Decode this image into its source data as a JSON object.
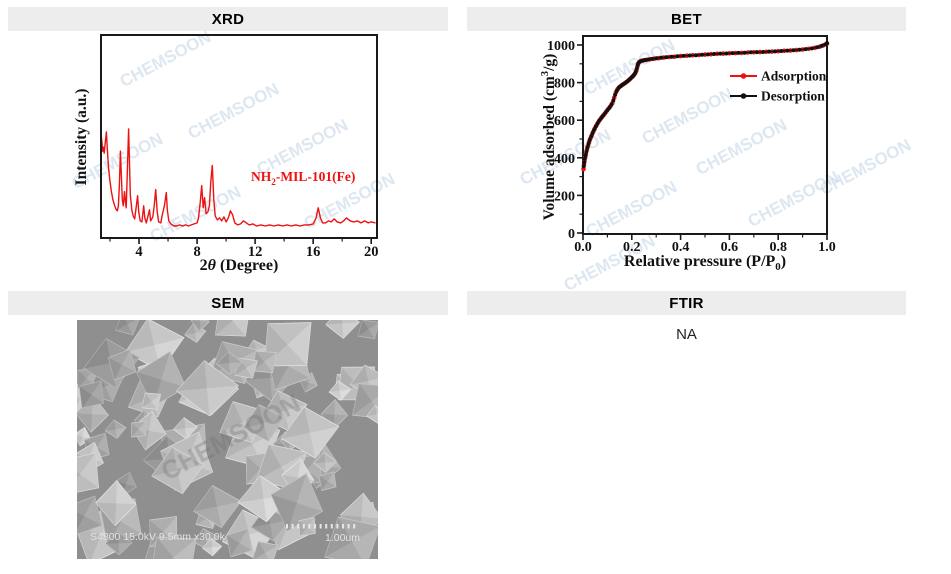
{
  "panels": {
    "xrd": {
      "title": "XRD"
    },
    "bet": {
      "title": "BET"
    },
    "sem": {
      "title": "SEM"
    },
    "ftir": {
      "title": "FTIR",
      "value": "NA"
    }
  },
  "watermark": {
    "text": "CHEMSOON",
    "color": "#bdd0e4"
  },
  "sem": {
    "caption": "S4800 15.0kV 9.5mm x30.0k",
    "scale_label": "1.00um"
  },
  "chart_data": [
    {
      "id": "xrd",
      "type": "line",
      "title": "XRD",
      "xlabel_parts": [
        {
          "t": "2"
        },
        {
          "t": "θ",
          "italic": true
        },
        {
          "t": " (Degree)"
        }
      ],
      "ylabel_parts": [
        {
          "t": "Intensity (a.u.)"
        }
      ],
      "xlim": [
        1.38,
        20.4
      ],
      "ylim": [
        0,
        105
      ],
      "x_ticks": [
        {
          "v": 4,
          "label": "4"
        },
        {
          "v": 8,
          "label": "8"
        },
        {
          "v": 12,
          "label": "12"
        },
        {
          "v": 16,
          "label": "16"
        },
        {
          "v": 20,
          "label": "20"
        }
      ],
      "x_minor": [
        2,
        6,
        10,
        14,
        18
      ],
      "grid": false,
      "series_color": "#ee1111",
      "annotation_parts": [
        {
          "t": "NH"
        },
        {
          "t": "2",
          "sub": true
        },
        {
          "t": "-MIL-101(Fe)"
        }
      ],
      "annotation_plain": "NH2-MIL-101(Fe)",
      "points": [
        [
          1.4,
          93
        ],
        [
          1.45,
          86
        ],
        [
          1.5,
          78
        ],
        [
          1.55,
          82
        ],
        [
          1.6,
          76
        ],
        [
          1.68,
          88
        ],
        [
          1.75,
          97
        ],
        [
          1.8,
          84
        ],
        [
          1.9,
          62
        ],
        [
          2.0,
          48
        ],
        [
          2.1,
          38
        ],
        [
          2.2,
          30
        ],
        [
          2.3,
          25
        ],
        [
          2.4,
          21
        ],
        [
          2.5,
          19
        ],
        [
          2.58,
          24
        ],
        [
          2.65,
          45
        ],
        [
          2.72,
          78
        ],
        [
          2.78,
          55
        ],
        [
          2.85,
          30
        ],
        [
          2.92,
          24
        ],
        [
          3.0,
          38
        ],
        [
          3.06,
          28
        ],
        [
          3.12,
          22
        ],
        [
          3.2,
          60
        ],
        [
          3.28,
          100
        ],
        [
          3.34,
          70
        ],
        [
          3.4,
          35
        ],
        [
          3.5,
          20
        ],
        [
          3.6,
          14
        ],
        [
          3.7,
          11
        ],
        [
          3.8,
          22
        ],
        [
          3.9,
          34
        ],
        [
          3.98,
          18
        ],
        [
          4.08,
          9
        ],
        [
          4.2,
          8
        ],
        [
          4.32,
          24
        ],
        [
          4.4,
          12
        ],
        [
          4.5,
          7
        ],
        [
          4.62,
          14
        ],
        [
          4.72,
          20
        ],
        [
          4.8,
          9
        ],
        [
          4.95,
          13
        ],
        [
          5.05,
          25
        ],
        [
          5.15,
          40
        ],
        [
          5.25,
          18
        ],
        [
          5.35,
          8
        ],
        [
          5.5,
          7
        ],
        [
          5.62,
          16
        ],
        [
          5.75,
          24
        ],
        [
          5.88,
          37
        ],
        [
          5.95,
          20
        ],
        [
          6.05,
          9
        ],
        [
          6.2,
          6
        ],
        [
          6.4,
          4
        ],
        [
          6.6,
          4
        ],
        [
          6.8,
          5
        ],
        [
          7.0,
          4
        ],
        [
          7.2,
          5
        ],
        [
          7.4,
          4
        ],
        [
          7.6,
          5
        ],
        [
          7.8,
          6
        ],
        [
          8.0,
          7
        ],
        [
          8.1,
          12
        ],
        [
          8.22,
          28
        ],
        [
          8.32,
          44
        ],
        [
          8.42,
          22
        ],
        [
          8.52,
          32
        ],
        [
          8.62,
          16
        ],
        [
          8.75,
          18
        ],
        [
          8.85,
          24
        ],
        [
          8.95,
          48
        ],
        [
          9.05,
          64
        ],
        [
          9.15,
          30
        ],
        [
          9.25,
          14
        ],
        [
          9.4,
          10
        ],
        [
          9.55,
          12
        ],
        [
          9.7,
          9
        ],
        [
          9.85,
          13
        ],
        [
          10.0,
          8
        ],
        [
          10.15,
          12
        ],
        [
          10.3,
          19
        ],
        [
          10.45,
          15
        ],
        [
          10.6,
          7
        ],
        [
          10.8,
          5
        ],
        [
          11.0,
          6
        ],
        [
          11.2,
          9
        ],
        [
          11.4,
          7
        ],
        [
          11.6,
          5
        ],
        [
          11.85,
          6
        ],
        [
          12.1,
          4
        ],
        [
          12.4,
          5
        ],
        [
          12.7,
          4
        ],
        [
          13.0,
          5
        ],
        [
          13.3,
          4
        ],
        [
          13.6,
          5
        ],
        [
          13.9,
          4
        ],
        [
          14.2,
          5
        ],
        [
          14.5,
          4
        ],
        [
          14.8,
          5
        ],
        [
          15.1,
          4
        ],
        [
          15.4,
          5
        ],
        [
          15.7,
          5
        ],
        [
          16.0,
          6
        ],
        [
          16.2,
          12
        ],
        [
          16.35,
          22
        ],
        [
          16.5,
          12
        ],
        [
          16.65,
          7
        ],
        [
          16.85,
          7
        ],
        [
          17.05,
          9
        ],
        [
          17.25,
          8
        ],
        [
          17.45,
          11
        ],
        [
          17.65,
          8
        ],
        [
          17.9,
          7
        ],
        [
          18.1,
          9
        ],
        [
          18.3,
          12
        ],
        [
          18.55,
          9
        ],
        [
          18.8,
          8
        ],
        [
          19.05,
          9
        ],
        [
          19.3,
          7
        ],
        [
          19.55,
          9
        ],
        [
          19.8,
          7
        ],
        [
          20.0,
          8
        ],
        [
          20.3,
          7
        ]
      ]
    },
    {
      "id": "bet",
      "type": "line+scatter",
      "title": "BET",
      "xlabel_parts": [
        {
          "t": "Relative pressure  (P/P"
        },
        {
          "t": "0",
          "sub": true
        },
        {
          "t": ")"
        }
      ],
      "ylabel_parts": [
        {
          "t": "Volume adsorbed (cm"
        },
        {
          "t": "3",
          "sup": true
        },
        {
          "t": "/g)"
        }
      ],
      "xlim": [
        0,
        1.0
      ],
      "ylim": [
        -5,
        1050
      ],
      "x_ticks": [
        {
          "v": 0.0,
          "label": "0.0"
        },
        {
          "v": 0.2,
          "label": "0.2"
        },
        {
          "v": 0.4,
          "label": "0.4"
        },
        {
          "v": 0.6,
          "label": "0.6"
        },
        {
          "v": 0.8,
          "label": "0.8"
        },
        {
          "v": 1.0,
          "label": "1.0"
        }
      ],
      "x_minor": [
        0.1,
        0.3,
        0.5,
        0.7,
        0.9
      ],
      "y_ticks": [
        {
          "v": 0,
          "label": "0"
        },
        {
          "v": 200,
          "label": "200"
        },
        {
          "v": 400,
          "label": "400"
        },
        {
          "v": 600,
          "label": "600"
        },
        {
          "v": 800,
          "label": "800"
        },
        {
          "v": 1000,
          "label": "1000"
        }
      ],
      "y_minor": [
        100,
        300,
        500,
        700,
        900
      ],
      "grid": false,
      "legend": [
        {
          "name": "Adsorption",
          "color": "#ee1111"
        },
        {
          "name": "Desorption",
          "color": "#111111"
        }
      ],
      "series": [
        {
          "name": "Adsorption",
          "color": "#ee1111",
          "points": [
            [
              0.002,
              340
            ],
            [
              0.004,
              362
            ],
            [
              0.006,
              382
            ],
            [
              0.009,
              402
            ],
            [
              0.012,
              420
            ],
            [
              0.016,
              443
            ],
            [
              0.02,
              462
            ],
            [
              0.025,
              483
            ],
            [
              0.03,
              502
            ],
            [
              0.036,
              520
            ],
            [
              0.042,
              538
            ],
            [
              0.048,
              555
            ],
            [
              0.055,
              572
            ],
            [
              0.062,
              588
            ],
            [
              0.07,
              603
            ],
            [
              0.078,
              617
            ],
            [
              0.086,
              630
            ],
            [
              0.095,
              645
            ],
            [
              0.104,
              660
            ],
            [
              0.112,
              673
            ],
            [
              0.12,
              690
            ],
            [
              0.128,
              720
            ],
            [
              0.135,
              748
            ],
            [
              0.142,
              765
            ],
            [
              0.15,
              777
            ],
            [
              0.158,
              785
            ],
            [
              0.166,
              792
            ],
            [
              0.175,
              800
            ],
            [
              0.184,
              809
            ],
            [
              0.192,
              818
            ],
            [
              0.2,
              828
            ],
            [
              0.207,
              838
            ],
            [
              0.213,
              848
            ],
            [
              0.218,
              862
            ],
            [
              0.222,
              882
            ],
            [
              0.226,
              900
            ],
            [
              0.231,
              910
            ],
            [
              0.238,
              915
            ],
            [
              0.248,
              918
            ],
            [
              0.26,
              921
            ],
            [
              0.275,
              924
            ],
            [
              0.292,
              927
            ],
            [
              0.31,
              930
            ],
            [
              0.33,
              933
            ],
            [
              0.352,
              936
            ],
            [
              0.375,
              938
            ],
            [
              0.4,
              941
            ],
            [
              0.425,
              943
            ],
            [
              0.45,
              945
            ],
            [
              0.475,
              947
            ],
            [
              0.5,
              949
            ],
            [
              0.525,
              951
            ],
            [
              0.55,
              953
            ],
            [
              0.575,
              954
            ],
            [
              0.6,
              956
            ],
            [
              0.625,
              957
            ],
            [
              0.65,
              958
            ],
            [
              0.675,
              960
            ],
            [
              0.7,
              961
            ],
            [
              0.725,
              962
            ],
            [
              0.75,
              964
            ],
            [
              0.775,
              965
            ],
            [
              0.8,
              967
            ],
            [
              0.825,
              969
            ],
            [
              0.85,
              971
            ],
            [
              0.875,
              973
            ],
            [
              0.9,
              976
            ],
            [
              0.925,
              980
            ],
            [
              0.95,
              985
            ],
            [
              0.97,
              991
            ],
            [
              0.985,
              998
            ],
            [
              1.0,
              1008
            ]
          ]
        },
        {
          "name": "Desorption",
          "color": "#111111",
          "points": [
            [
              0.003,
              354
            ],
            [
              0.005,
              374
            ],
            [
              0.0075,
              394
            ],
            [
              0.0105,
              413
            ],
            [
              0.014,
              433
            ],
            [
              0.018,
              454
            ],
            [
              0.0225,
              474
            ],
            [
              0.0275,
              494
            ],
            [
              0.033,
              513
            ],
            [
              0.039,
              531
            ],
            [
              0.045,
              548
            ],
            [
              0.0515,
              565
            ],
            [
              0.0585,
              581
            ],
            [
              0.066,
              597
            ],
            [
              0.074,
              611
            ],
            [
              0.082,
              624
            ],
            [
              0.0905,
              638
            ],
            [
              0.0995,
              653
            ],
            [
              0.108,
              667
            ],
            [
              0.116,
              682
            ],
            [
              0.124,
              705
            ],
            [
              0.1315,
              735
            ],
            [
              0.1385,
              757
            ],
            [
              0.146,
              772
            ],
            [
              0.154,
              781
            ],
            [
              0.162,
              789
            ],
            [
              0.1705,
              796
            ],
            [
              0.1795,
              805
            ],
            [
              0.188,
              814
            ],
            [
              0.196,
              823
            ],
            [
              0.2035,
              833
            ],
            [
              0.21,
              843
            ],
            [
              0.2155,
              855
            ],
            [
              0.22,
              872
            ],
            [
              0.224,
              892
            ],
            [
              0.2285,
              906
            ],
            [
              0.2345,
              913
            ],
            [
              0.243,
              917
            ],
            [
              0.254,
              920
            ],
            [
              0.2675,
              923
            ],
            [
              0.2835,
              926
            ],
            [
              0.301,
              929
            ],
            [
              0.32,
              932
            ],
            [
              0.341,
              935
            ],
            [
              0.3635,
              937
            ],
            [
              0.3875,
              940
            ],
            [
              0.4125,
              942
            ],
            [
              0.4375,
              944
            ],
            [
              0.4625,
              946
            ],
            [
              0.4875,
              948
            ],
            [
              0.5125,
              950
            ],
            [
              0.5375,
              952
            ],
            [
              0.5625,
              954
            ],
            [
              0.5875,
              955
            ],
            [
              0.6125,
              957
            ],
            [
              0.6375,
              958
            ],
            [
              0.6625,
              959
            ],
            [
              0.6875,
              961
            ],
            [
              0.7125,
              962
            ],
            [
              0.7375,
              963
            ],
            [
              0.7625,
              965
            ],
            [
              0.7875,
              966
            ],
            [
              0.8125,
              968
            ],
            [
              0.8375,
              970
            ],
            [
              0.8625,
              972
            ],
            [
              0.8875,
              975
            ],
            [
              0.9125,
              978
            ],
            [
              0.9375,
              982
            ],
            [
              0.96,
              988
            ],
            [
              0.978,
              995
            ],
            [
              0.993,
              1003
            ],
            [
              1.0,
              1010
            ]
          ]
        }
      ]
    }
  ]
}
